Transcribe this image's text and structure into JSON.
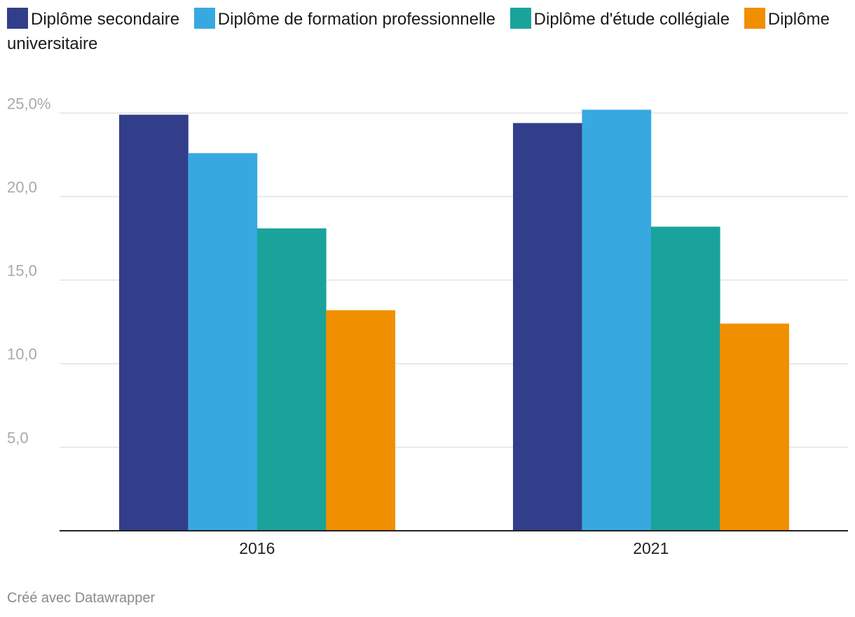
{
  "chart_data": {
    "type": "bar",
    "categories": [
      "2016",
      "2021"
    ],
    "series": [
      {
        "name": "Diplôme secondaire",
        "color": "#323e8a",
        "values": [
          24.9,
          24.4
        ]
      },
      {
        "name": "Diplôme de formation professionnelle",
        "color": "#38a9e0",
        "values": [
          22.6,
          25.2
        ]
      },
      {
        "name": "Diplôme d'étude collégiale",
        "color": "#1aa39b",
        "values": [
          18.1,
          18.2
        ]
      },
      {
        "name": "Diplôme universitaire",
        "color": "#f09000",
        "values": [
          13.2,
          12.4
        ]
      }
    ],
    "y_ticks": [
      {
        "value": 25,
        "label": "25,0%"
      },
      {
        "value": 20,
        "label": "20,0"
      },
      {
        "value": 15,
        "label": "15,0"
      },
      {
        "value": 10,
        "label": "10,0"
      },
      {
        "value": 5,
        "label": "5,0"
      }
    ],
    "ylim": [
      0,
      25.2
    ],
    "grid": true,
    "legend_position": "top-left"
  },
  "footer": {
    "credit": "Créé avec Datawrapper"
  }
}
